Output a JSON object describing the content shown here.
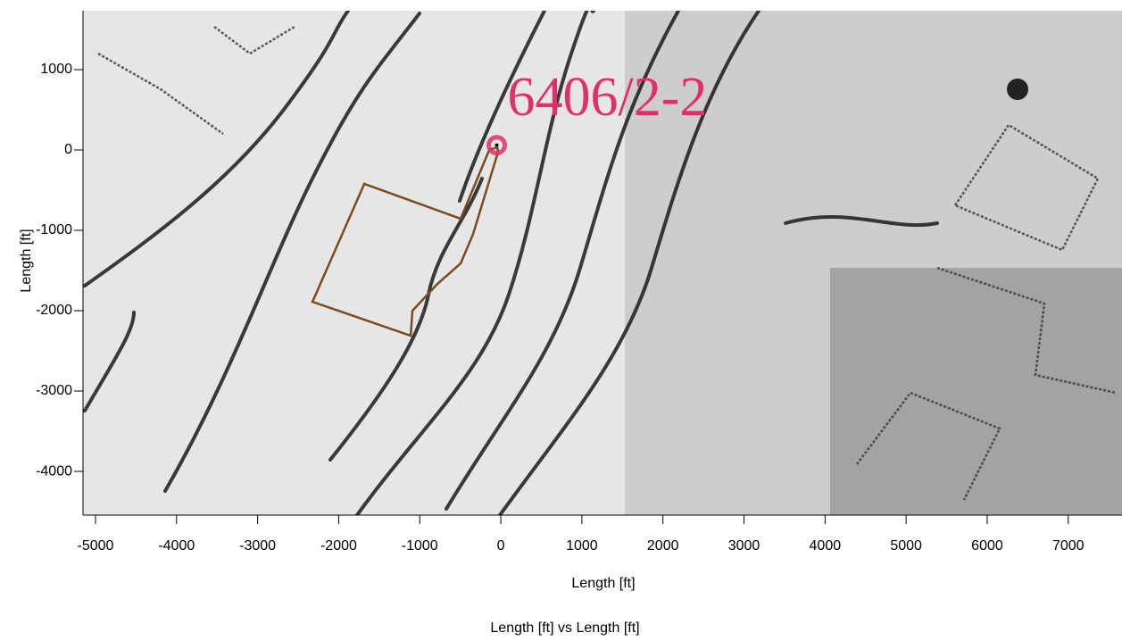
{
  "chart_data": {
    "type": "line",
    "title": "Length [ft] vs Length [ft]",
    "xlabel": "Length [ft]",
    "ylabel": "Length [ft]",
    "x": [
      -44,
      -143,
      -495,
      -1684,
      -2323,
      -1112,
      -1090,
      -782,
      -495,
      -341,
      -33,
      -44
    ],
    "values": [
      33,
      0,
      -856,
      -422,
      -1889,
      -2311,
      -2000,
      -1667,
      -1411,
      -1044,
      -22,
      33
    ],
    "color": "#7a4a1c",
    "annotations": [
      {
        "text": "6406/2-2",
        "x": -50,
        "y": 60,
        "color": "#e0306a"
      }
    ],
    "xlim": [
      -5154,
      7663
    ],
    "ylim": [
      -4544,
      1733
    ],
    "xticks": [
      -5000,
      -4000,
      -3000,
      -2000,
      -1000,
      0,
      1000,
      2000,
      3000,
      4000,
      5000,
      6000,
      7000
    ],
    "yticks": [
      -4000,
      -3000,
      -2000,
      -1000,
      0,
      1000
    ]
  }
}
